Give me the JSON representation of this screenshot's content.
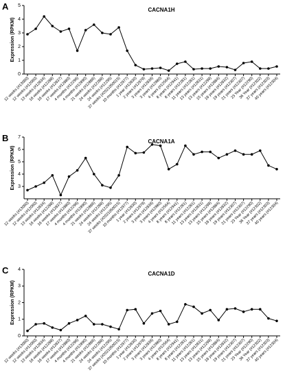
{
  "chart_data": [
    {
      "type": "line",
      "panel": "A",
      "title": "CACNA1H",
      "y_label": "Expression (RPKM)",
      "categories": [
        "12 weeks (#13060)",
        "12 weeks (#12060)",
        "13 weeks (#12834)",
        "16 weeks (#12288)",
        "16 weeks (#12837)",
        "17 weeks (#12880)",
        "4 months (#12296)",
        "4 months (#12890)",
        "21 weeks (#12886)",
        "24 weeks (#12288)",
        "24 weeks (#12295)",
        "37 weeks (#2021050015)",
        "10 months (#12977)",
        "1 year (#12830)",
        "2 years (#12979)",
        "3 years (#12836)",
        "3 years (#12980)",
        "4 years (#12564)",
        "8 years (#12941)",
        "8 years (#12281)",
        "11 years (#12281)",
        "13 years (#12831)",
        "13 years (#12299)",
        "15 years (#12884)",
        "18 years (#12832)",
        "19 years (#12307)",
        "21 years (#12307)",
        "23 Year (#12290)",
        "36 Year (#12302)",
        "37 years (#12303)",
        "40 years (#12304)"
      ],
      "series": [
        {
          "name": "CACNA1H",
          "color": "#000000",
          "values": [
            2.9,
            3.3,
            4.2,
            3.5,
            3.1,
            3.3,
            1.7,
            3.2,
            3.6,
            3.0,
            2.9,
            3.4,
            1.7,
            0.65,
            0.35,
            0.4,
            0.45,
            0.25,
            0.75,
            0.9,
            0.35,
            0.4,
            0.4,
            0.55,
            0.5,
            0.3,
            0.8,
            0.9,
            0.4,
            0.4,
            0.55
          ]
        }
      ],
      "ylim": [
        0,
        5
      ],
      "yticks": [
        0,
        1,
        2,
        3,
        4,
        5
      ]
    },
    {
      "type": "line",
      "panel": "B",
      "title": "CACNA1A",
      "y_label": "Expression (RPKM)",
      "categories": [
        "12 weeks (#13060)",
        "12 weeks (#12060)",
        "13 weeks (#12834)",
        "16 weeks (#12288)",
        "16 weeks (#12837)",
        "17 weeks (#12880)",
        "4 months (#12296)",
        "4 months (#12890)",
        "21 weeks (#12886)",
        "24 weeks (#12288)",
        "24 weeks (#12295)",
        "37 weeks (#2021050015)",
        "10 months (#12977)",
        "1 year (#12830)",
        "2 years (#12979)",
        "3 years (#12836)",
        "3 years (#12980)",
        "4 years (#12564)",
        "8 years (#12941)",
        "8 years (#12281)",
        "11 years (#12281)",
        "13 years (#12831)",
        "13 years (#12299)",
        "15 years (#12884)",
        "18 years (#12832)",
        "19 years (#12307)",
        "21 years (#12307)",
        "23 Year (#12290)",
        "36 Year (#12302)",
        "37 years (#12303)",
        "40 years (#12304)"
      ],
      "series": [
        {
          "name": "CACNA1A",
          "color": "#000000",
          "values": [
            2.7,
            3.0,
            3.3,
            3.9,
            2.3,
            3.8,
            4.3,
            5.3,
            4.0,
            3.1,
            2.9,
            3.9,
            6.2,
            5.7,
            5.75,
            6.4,
            6.3,
            4.4,
            4.8,
            6.3,
            5.6,
            5.8,
            5.8,
            5.3,
            5.6,
            5.9,
            5.6,
            5.6,
            5.9,
            4.7,
            4.4
          ]
        }
      ],
      "ylim": [
        2,
        7
      ],
      "yticks": [
        3,
        4,
        5,
        6,
        7
      ]
    },
    {
      "type": "line",
      "panel": "C",
      "title": "CACNA1D",
      "y_label": "Expression (RPKM)",
      "categories": [
        "12 weeks (#13060)",
        "12 weeks (#12060)",
        "13 weeks (#12834)",
        "16 weeks (#12288)",
        "16 weeks (#12837)",
        "17 weeks (#12880)",
        "4 months (#12296)",
        "4 months (#12890)",
        "21 weeks (#12886)",
        "24 weeks (#12288)",
        "24 weeks (#12295)",
        "37 weeks (#2021050015)",
        "10 months (#12977)",
        "1 year (#12830)",
        "2 years (#12979)",
        "3 years (#12836)",
        "3 years (#12980)",
        "4 years (#12564)",
        "8 years (#12941)",
        "8 years (#12281)",
        "11 years (#12281)",
        "13 years (#12831)",
        "13 years (#12299)",
        "15 years (#12884)",
        "18 years (#12832)",
        "19 years (#12307)",
        "21 years (#12307)",
        "23 Year (#12290)",
        "36 Year (#12302)",
        "37 years (#12303)",
        "40 years (#12304)"
      ],
      "series": [
        {
          "name": "CACNA1D",
          "color": "#000000",
          "values": [
            0.3,
            0.7,
            0.75,
            0.5,
            0.35,
            0.75,
            0.95,
            1.2,
            0.7,
            0.7,
            0.55,
            0.4,
            1.55,
            1.6,
            0.75,
            1.35,
            1.5,
            0.7,
            0.85,
            1.9,
            1.75,
            1.35,
            1.55,
            0.95,
            1.6,
            1.65,
            1.45,
            1.6,
            1.6,
            1.05,
            0.9
          ]
        }
      ],
      "ylim": [
        0,
        4
      ],
      "yticks": [
        0,
        1,
        2,
        3,
        4
      ]
    }
  ]
}
